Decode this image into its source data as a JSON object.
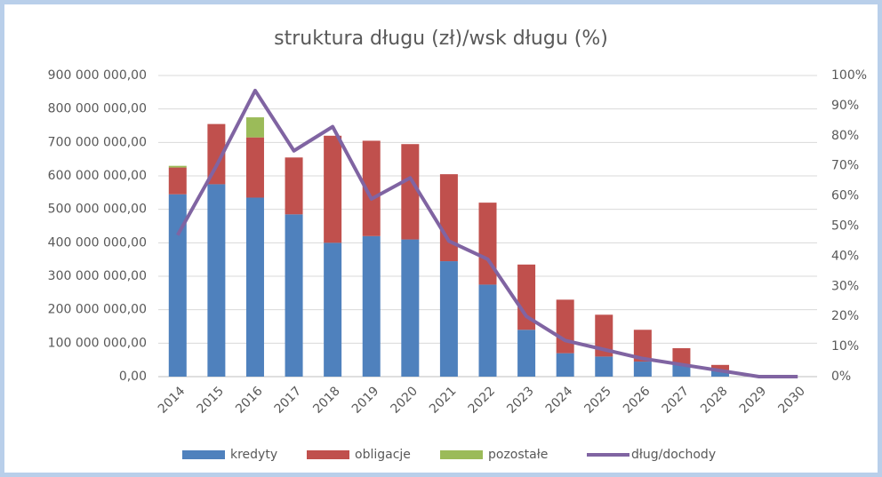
{
  "chart_data": {
    "type": "bar",
    "title": "struktura długu (zł)/wsk długu (%)",
    "categories": [
      "2014",
      "2015",
      "2016",
      "2017",
      "2018",
      "2019",
      "2020",
      "2021",
      "2022",
      "2023",
      "2024",
      "2025",
      "2026",
      "2027",
      "2028",
      "2029",
      "2030"
    ],
    "series": [
      {
        "name": "kredyty",
        "color": "#4f81bd",
        "type": "bar",
        "values": [
          545000000,
          575000000,
          535000000,
          485000000,
          400000000,
          420000000,
          410000000,
          345000000,
          275000000,
          140000000,
          70000000,
          60000000,
          45000000,
          37000000,
          20000000,
          0,
          0
        ]
      },
      {
        "name": "obligacje",
        "color": "#c0504d",
        "type": "bar",
        "values": [
          80000000,
          180000000,
          180000000,
          170000000,
          320000000,
          285000000,
          285000000,
          260000000,
          245000000,
          195000000,
          160000000,
          125000000,
          95000000,
          48000000,
          15000000,
          0,
          0
        ]
      },
      {
        "name": "pozostałe",
        "color": "#9bbb59",
        "type": "bar",
        "values": [
          5000000,
          0,
          60000000,
          0,
          0,
          0,
          0,
          0,
          0,
          0,
          0,
          0,
          0,
          0,
          0,
          0,
          0
        ]
      },
      {
        "name": "dług/dochody",
        "color": "#8064a2",
        "type": "line",
        "axis": "y2",
        "values": [
          47,
          70,
          95,
          75,
          83,
          59,
          66,
          45,
          39,
          20,
          12,
          9,
          6,
          4,
          2,
          0,
          0
        ]
      }
    ],
    "ylim": [
      0,
      900000000
    ],
    "yticks": [
      {
        "value": 0,
        "label": "0,00"
      },
      {
        "value": 100000000,
        "label": "100 000 000,00"
      },
      {
        "value": 200000000,
        "label": "200 000 000,00"
      },
      {
        "value": 300000000,
        "label": "300 000 000,00"
      },
      {
        "value": 400000000,
        "label": "400 000 000,00"
      },
      {
        "value": 500000000,
        "label": "500 000 000,00"
      },
      {
        "value": 600000000,
        "label": "600 000 000,00"
      },
      {
        "value": 700000000,
        "label": "700 000 000,00"
      },
      {
        "value": 800000000,
        "label": "800 000 000,00"
      },
      {
        "value": 900000000,
        "label": "900 000 000,00"
      }
    ],
    "y2lim": [
      0,
      100
    ],
    "y2ticks": [
      {
        "value": 0,
        "label": "0%"
      },
      {
        "value": 10,
        "label": "10%"
      },
      {
        "value": 20,
        "label": "20%"
      },
      {
        "value": 30,
        "label": "30%"
      },
      {
        "value": 40,
        "label": "40%"
      },
      {
        "value": 50,
        "label": "50%"
      },
      {
        "value": 60,
        "label": "60%"
      },
      {
        "value": 70,
        "label": "70%"
      },
      {
        "value": 80,
        "label": "80%"
      },
      {
        "value": 90,
        "label": "90%"
      },
      {
        "value": 100,
        "label": "100%"
      }
    ],
    "grid": true,
    "legend": "bottom"
  }
}
